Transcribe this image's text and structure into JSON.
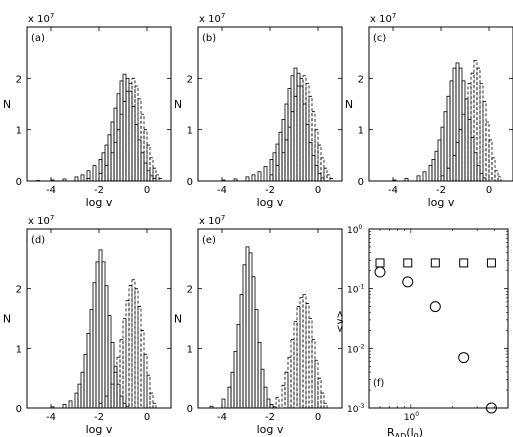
{
  "chart_data": [
    {
      "type": "bar",
      "panel_label": "(a)",
      "exponent_label": "x 10",
      "exponent_power": "7",
      "xlabel": "log v",
      "ylabel": "N",
      "xlim": [
        -5,
        1
      ],
      "ylim": [
        0,
        30000000.0
      ],
      "xticks": [
        "-4",
        "-2",
        "0"
      ],
      "yticks": [
        "0",
        "1",
        "2"
      ],
      "bin_width": 0.125,
      "series": [
        {
          "line_style": "solid",
          "x": [
            -4.6,
            -4.0,
            -3.5,
            -3.0,
            -2.75,
            -2.5,
            -2.25,
            -2.0,
            -1.875,
            -1.75,
            -1.625,
            -1.5,
            -1.375,
            -1.25,
            -1.125,
            -1.0,
            -0.875,
            -0.75,
            -0.625,
            -0.5,
            -0.375,
            -0.25,
            -0.125,
            0.0,
            0.125,
            0.25
          ],
          "values": [
            100000.0,
            200000.0,
            400000.0,
            800000.0,
            1200000.0,
            2000000.0,
            3000000.0,
            4200000.0,
            5500000.0,
            7000000.0,
            9000000.0,
            11500000.0,
            14200000.0,
            17000000.0,
            19500000.0,
            20800000.0,
            20000000.0,
            17500000.0,
            14500000.0,
            11000000.0,
            8000000.0,
            5500000.0,
            3500000.0,
            2000000.0,
            1000000.0,
            500000.0
          ]
        },
        {
          "line_style": "dashed",
          "x": [
            -2.5,
            -2.0,
            -1.75,
            -1.5,
            -1.375,
            -1.25,
            -1.125,
            -1.0,
            -0.875,
            -0.75,
            -0.625,
            -0.5,
            -0.375,
            -0.25,
            -0.125,
            0.0,
            0.125,
            0.25,
            0.375,
            0.5
          ],
          "values": [
            500000.0,
            1500000.0,
            3000000.0,
            5500000.0,
            7500000.0,
            10000000.0,
            13000000.0,
            15500000.0,
            17500000.0,
            19000000.0,
            20000000.0,
            18500000.0,
            16000000.0,
            13000000.0,
            10000000.0,
            7000000.0,
            4500000.0,
            2500000.0,
            1200000.0,
            500000.0
          ]
        }
      ]
    },
    {
      "type": "bar",
      "panel_label": "(b)",
      "exponent_label": "x 10",
      "exponent_power": "7",
      "xlabel": "log v",
      "ylabel": "N",
      "xlim": [
        -5,
        1
      ],
      "ylim": [
        0,
        30000000.0
      ],
      "xticks": [
        "-4",
        "-2",
        "0"
      ],
      "yticks": [
        "0",
        "1",
        "2"
      ],
      "bin_width": 0.125,
      "series": [
        {
          "line_style": "solid",
          "x": [
            -4.0,
            -3.5,
            -3.0,
            -2.75,
            -2.5,
            -2.25,
            -2.0,
            -1.875,
            -1.75,
            -1.625,
            -1.5,
            -1.375,
            -1.25,
            -1.125,
            -1.0,
            -0.875,
            -0.75,
            -0.625,
            -0.5,
            -0.375,
            -0.25,
            -0.125,
            0.0,
            0.125
          ],
          "values": [
            200000.0,
            400000.0,
            800000.0,
            1200000.0,
            1800000.0,
            2800000.0,
            4200000.0,
            5500000.0,
            7200000.0,
            9500000.0,
            12000000.0,
            15000000.0,
            18000000.0,
            20500000.0,
            22000000.0,
            21000000.0,
            18500000.0,
            15000000.0,
            11000000.0,
            7500000.0,
            5000000.0,
            3000000.0,
            1500000.0,
            600000.0
          ]
        },
        {
          "line_style": "dashed",
          "x": [
            -2.0,
            -1.75,
            -1.5,
            -1.375,
            -1.25,
            -1.125,
            -1.0,
            -0.875,
            -0.75,
            -0.625,
            -0.5,
            -0.375,
            -0.25,
            -0.125,
            0.0,
            0.125,
            0.25,
            0.375,
            0.5
          ],
          "values": [
            1200000.0,
            3000000.0,
            5500000.0,
            8000000.0,
            10500000.0,
            13500000.0,
            16500000.0,
            18500000.0,
            20000000.0,
            20500000.0,
            19000000.0,
            16500000.0,
            13500000.0,
            10000000.0,
            7000000.0,
            4500000.0,
            2500000.0,
            1200000.0,
            500000.0
          ]
        }
      ]
    },
    {
      "type": "bar",
      "panel_label": "(c)",
      "exponent_label": "x 10",
      "exponent_power": "7",
      "xlabel": "log v",
      "ylabel": "N",
      "xlim": [
        -5,
        1
      ],
      "ylim": [
        0,
        30000000.0
      ],
      "xticks": [
        "-4",
        "-2",
        "0"
      ],
      "yticks": [
        "0",
        "1",
        "2"
      ],
      "bin_width": 0.125,
      "series": [
        {
          "line_style": "solid",
          "x": [
            -4.0,
            -3.5,
            -3.0,
            -2.75,
            -2.5,
            -2.375,
            -2.25,
            -2.125,
            -2.0,
            -1.875,
            -1.75,
            -1.625,
            -1.5,
            -1.375,
            -1.25,
            -1.125,
            -1.0,
            -0.875,
            -0.75,
            -0.625,
            -0.5,
            -0.375,
            -0.25
          ],
          "values": [
            200000.0,
            500000.0,
            1000000.0,
            1800000.0,
            3000000.0,
            4200000.0,
            5800000.0,
            8000000.0,
            10500000.0,
            13500000.0,
            16500000.0,
            19500000.0,
            22000000.0,
            23000000.0,
            22000000.0,
            19500000.0,
            16000000.0,
            12000000.0,
            8500000.0,
            5500000.0,
            3000000.0,
            1500000.0,
            600000.0
          ]
        },
        {
          "line_style": "dashed",
          "x": [
            -2.0,
            -1.75,
            -1.5,
            -1.375,
            -1.25,
            -1.125,
            -1.0,
            -0.875,
            -0.75,
            -0.625,
            -0.5,
            -0.375,
            -0.25,
            -0.125,
            0.0,
            0.125,
            0.25,
            0.375
          ],
          "values": [
            1000000.0,
            2500000.0,
            5000000.0,
            7500000.0,
            10000000.0,
            13000000.0,
            16000000.0,
            19000000.0,
            21000000.0,
            23500000.0,
            22000000.0,
            19000000.0,
            15500000.0,
            11500000.0,
            8000000.0,
            4500000.0,
            2000000.0,
            800000.0
          ]
        }
      ]
    },
    {
      "type": "bar",
      "panel_label": "(d)",
      "exponent_label": "x 10",
      "exponent_power": "7",
      "xlabel": "log v",
      "ylabel": "N",
      "xlim": [
        -5,
        1
      ],
      "ylim": [
        0,
        30000000.0
      ],
      "xticks": [
        "-4",
        "-2",
        "0"
      ],
      "yticks": [
        "0",
        "1",
        "2"
      ],
      "bin_width": 0.125,
      "series": [
        {
          "line_style": "solid",
          "x": [
            -4.0,
            -3.5,
            -3.25,
            -3.0,
            -2.875,
            -2.75,
            -2.625,
            -2.5,
            -2.375,
            -2.25,
            -2.125,
            -2.0,
            -1.875,
            -1.75,
            -1.625,
            -1.5,
            -1.375,
            -1.25,
            -1.125,
            -1.0,
            -0.875
          ],
          "values": [
            200000.0,
            600000.0,
            1200000.0,
            2500000.0,
            4000000.0,
            6000000.0,
            9000000.0,
            12500000.0,
            16500000.0,
            21000000.0,
            24500000.0,
            26500000.0,
            24500000.0,
            20500000.0,
            15500000.0,
            11000000.0,
            7000000.0,
            4000000.0,
            2000000.0,
            800000.0,
            300000.0
          ]
        },
        {
          "line_style": "dashed",
          "x": [
            -2.0,
            -1.75,
            -1.5,
            -1.375,
            -1.25,
            -1.125,
            -1.0,
            -0.875,
            -0.75,
            -0.625,
            -0.5,
            -0.375,
            -0.25,
            -0.125,
            0.0,
            0.125,
            0.25
          ],
          "values": [
            800000.0,
            2000000.0,
            4000000.0,
            6000000.0,
            8500000.0,
            11500000.0,
            15000000.0,
            18000000.0,
            20500000.0,
            21500000.0,
            20000000.0,
            17000000.0,
            13000000.0,
            9000000.0,
            5500000.0,
            2500000.0,
            800000.0
          ]
        }
      ]
    },
    {
      "type": "bar",
      "panel_label": "(e)",
      "exponent_label": "x 10",
      "exponent_power": "7",
      "xlabel": "log v",
      "ylabel": "N",
      "xlim": [
        -5,
        1
      ],
      "ylim": [
        0,
        30000000.0
      ],
      "xticks": [
        "-4",
        "-2",
        "0"
      ],
      "yticks": [
        "0",
        "1",
        "2"
      ],
      "bin_width": 0.125,
      "series": [
        {
          "line_style": "solid",
          "x": [
            -4.5,
            -4.0,
            -3.75,
            -3.625,
            -3.5,
            -3.375,
            -3.25,
            -3.125,
            -3.0,
            -2.875,
            -2.75,
            -2.625,
            -2.5,
            -2.375,
            -2.25,
            -2.125,
            -2.0,
            -1.875
          ],
          "values": [
            300000.0,
            1500000.0,
            3500000.0,
            6000000.0,
            9500000.0,
            14000000.0,
            19000000.0,
            24000000.0,
            27000000.0,
            26000000.0,
            22000000.0,
            16500000.0,
            11000000.0,
            6500000.0,
            3500000.0,
            1500000.0,
            600000.0,
            200000.0
          ]
        },
        {
          "line_style": "dashed",
          "x": [
            -2.0,
            -1.75,
            -1.5,
            -1.375,
            -1.25,
            -1.125,
            -1.0,
            -0.875,
            -0.75,
            -0.625,
            -0.5,
            -0.375,
            -0.25,
            -0.125,
            0.0,
            0.125,
            0.25
          ],
          "values": [
            600000.0,
            1800000.0,
            3800000.0,
            6000000.0,
            8500000.0,
            11500000.0,
            14500000.0,
            17000000.0,
            18500000.0,
            19000000.0,
            17500000.0,
            15000000.0,
            11500000.0,
            8000000.0,
            5000000.0,
            2500000.0,
            800000.0
          ]
        }
      ]
    },
    {
      "type": "scatter",
      "panel_label": "(f)",
      "ylabel": "<v>",
      "xlabel_main": "R",
      "xlabel_sub": "AD",
      "xlabel_paren": "(l",
      "xlabel_paren_sub": "0",
      "xlabel_close": ")",
      "x_scale": "log",
      "y_scale": "log",
      "xlim": [
        0.5,
        5.0
      ],
      "ylim": [
        0.001,
        1
      ],
      "xticks": [
        {
          "value": 1,
          "base": "10",
          "power": "0"
        }
      ],
      "yticks": [
        {
          "value": 1,
          "base": "10",
          "power": "0"
        },
        {
          "value": 0.1,
          "base": "10",
          "power": "-1"
        },
        {
          "value": 0.01,
          "base": "10",
          "power": "-2"
        },
        {
          "value": 0.001,
          "base": "10",
          "power": "-3"
        }
      ],
      "series": [
        {
          "marker": "square",
          "x": [
            0.6,
            0.95,
            1.5,
            2.4,
            3.8
          ],
          "values": [
            0.27,
            0.27,
            0.27,
            0.27,
            0.27
          ]
        },
        {
          "marker": "circle",
          "x": [
            0.6,
            0.95,
            1.5,
            2.4,
            3.8
          ],
          "values": [
            0.19,
            0.13,
            0.05,
            0.007,
            0.001
          ]
        }
      ]
    }
  ]
}
